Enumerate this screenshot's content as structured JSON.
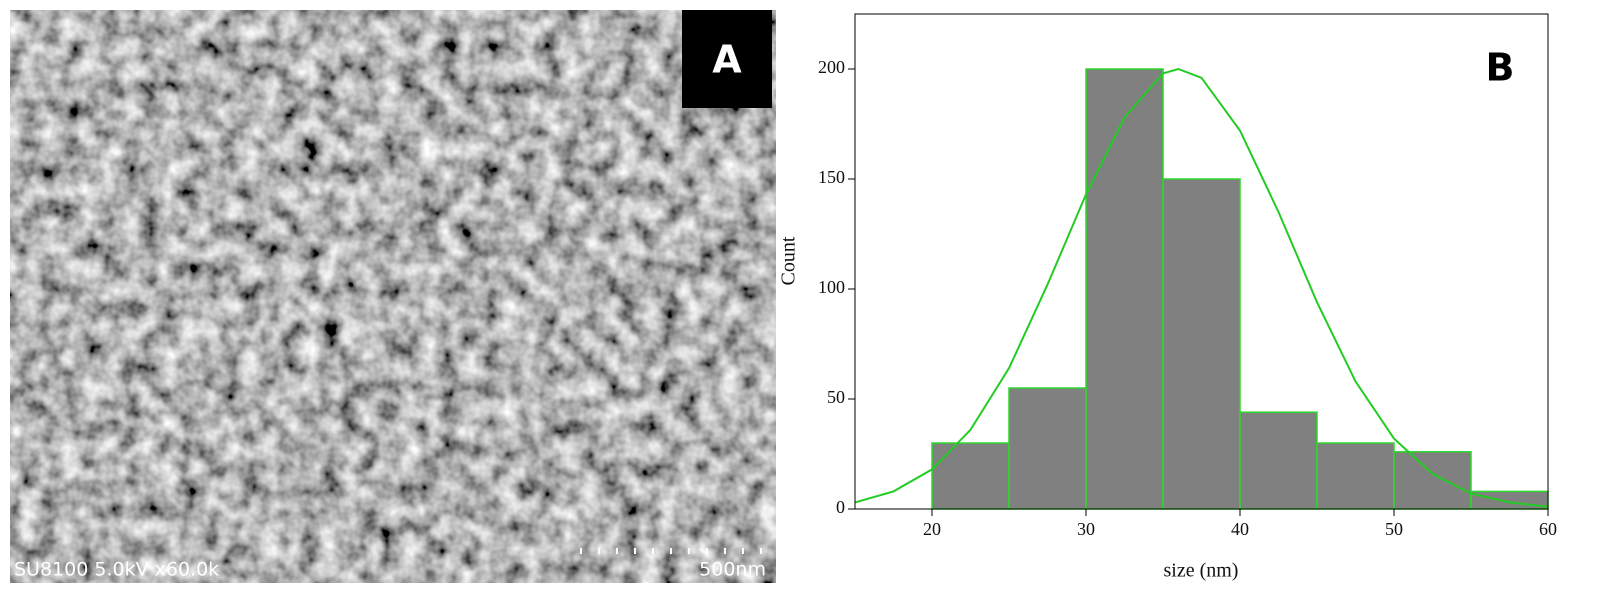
{
  "image_panel": {
    "label": "A",
    "info": "SU8100 5.0kV x60.0k",
    "scale": "500nm"
  },
  "chart_data": {
    "type": "histogram",
    "panel_label": "B",
    "x_label": "size (nm)",
    "y_label": "Count",
    "bins": [
      20,
      25,
      30,
      35,
      40,
      45,
      50,
      55,
      60
    ],
    "values": [
      30,
      55,
      200,
      150,
      44,
      30,
      26,
      8
    ],
    "color": "#808080",
    "edge_color": "#2bd92b",
    "fit": {
      "color": "#22cc22",
      "x": [
        15,
        17.5,
        20,
        22.5,
        25,
        27.5,
        30,
        32.5,
        35,
        36,
        37.5,
        40,
        42.5,
        45,
        47.5,
        50,
        52.5,
        55,
        57.5,
        60
      ],
      "values": [
        3,
        8,
        18,
        36,
        64,
        102,
        143,
        178,
        198,
        200,
        196,
        172,
        135,
        94,
        58,
        32,
        16,
        7,
        3,
        1
      ]
    },
    "xlim": [
      15,
      60
    ],
    "ylim": [
      0,
      225
    ],
    "xticks": [
      20,
      30,
      40,
      50,
      60
    ],
    "yticks": [
      0,
      50,
      100,
      150,
      200
    ]
  }
}
